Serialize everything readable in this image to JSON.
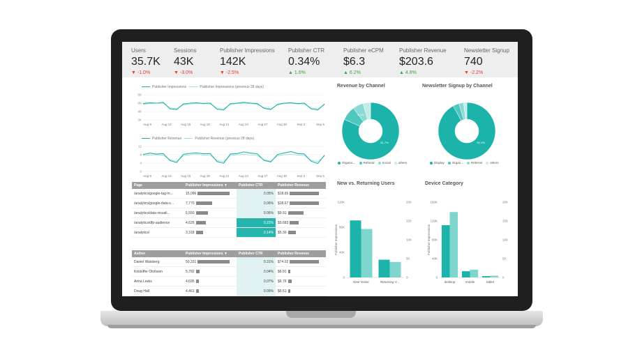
{
  "kpis": [
    {
      "label": "Users",
      "value": "35.7K",
      "change": "-1.0%",
      "dir": "down"
    },
    {
      "label": "Sessions",
      "value": "43K",
      "change": "-3.0%",
      "dir": "down"
    },
    {
      "label": "Publisher Impressions",
      "value": "142K",
      "change": "-2.5%",
      "dir": "down"
    },
    {
      "label": "Publisher CTR",
      "value": "0.34%",
      "change": "1.6%",
      "dir": "up"
    },
    {
      "label": "Publisher eCPM",
      "value": "$6.3",
      "change": "6.2%",
      "dir": "up"
    },
    {
      "label": "Publisher Revenue",
      "value": "$203.6",
      "change": "4.8%",
      "dir": "up"
    },
    {
      "label": "Newsletter Signup",
      "value": "740",
      "change": "-2.2%",
      "dir": "down"
    }
  ],
  "arrows": {
    "down": "▼",
    "up": "▲"
  },
  "impressions_chart": {
    "legend_current": "Publisher Impressions",
    "legend_previous": "Publisher Impressions (previous 28 days)",
    "y_ticks": [
      "8K",
      "6K",
      "4K",
      "2K"
    ],
    "x_ticks": [
      "Aug 9",
      "Aug 12",
      "Aug 15",
      "Aug 18",
      "Aug 21",
      "Aug 24",
      "Aug 27",
      "Aug 30",
      "Sep 2",
      "Sep 5"
    ],
    "current": [
      5.8,
      6.0,
      5.9,
      6.1,
      4.6,
      4.4,
      5.7,
      5.9,
      6.0,
      5.8,
      5.9,
      4.5,
      4.3,
      5.8,
      5.9,
      6.1,
      5.9,
      5.8,
      4.7,
      4.4,
      5.6,
      5.9,
      6.0,
      5.8,
      5.9,
      4.6,
      4.3,
      5.7
    ],
    "previous": [
      5.6,
      5.8,
      5.9,
      5.9,
      4.8,
      4.6,
      5.5,
      5.7,
      5.8,
      5.9,
      5.7,
      4.8,
      4.6,
      5.6,
      5.8,
      5.9,
      5.8,
      5.6,
      4.9,
      4.6,
      5.5,
      5.8,
      5.9,
      5.7,
      5.7,
      4.8,
      4.6,
      5.5
    ],
    "ylim": [
      2,
      8.5
    ]
  },
  "revenue_chart": {
    "legend_current": "Publisher Revenue",
    "legend_previous": "Publisher Revenue (previous 28 days)",
    "y_ticks": [
      "12",
      "8",
      "4",
      "0"
    ],
    "x_ticks": [
      "Aug 9",
      "Aug 12",
      "Aug 15",
      "Aug 18",
      "Aug 21",
      "Aug 24",
      "Aug 27",
      "Aug 30",
      "Sep 2",
      "Sep 5"
    ],
    "current": [
      8.5,
      9.2,
      8.8,
      9.0,
      5.5,
      4.5,
      8.6,
      9.1,
      9.3,
      8.9,
      9.0,
      5.0,
      4.2,
      8.8,
      9.0,
      9.8,
      9.2,
      8.9,
      5.6,
      4.8,
      8.5,
      9.3,
      10.0,
      9.0,
      8.8,
      5.2,
      4.0,
      8.2
    ],
    "previous": [
      7.9,
      8.3,
      8.4,
      8.2,
      5.9,
      5.1,
      7.9,
      8.4,
      8.5,
      8.3,
      8.1,
      5.6,
      5.0,
      8.0,
      8.4,
      8.6,
      8.3,
      8.1,
      5.8,
      5.2,
      7.8,
      8.4,
      8.6,
      8.2,
      8.0,
      5.6,
      5.0,
      7.7
    ],
    "ylim": [
      0,
      14
    ]
  },
  "page_table": {
    "headers": [
      "Page",
      "Publisher Impressions ▼",
      "Publisher CTR",
      "Publisher Revenue"
    ],
    "rows": [
      {
        "page": "/analytics/google-tag-m...",
        "impr": "15,096",
        "impr_frac": 1.0,
        "ctr": "0.05%",
        "ctr_hi": false,
        "rev": "$18.65",
        "rev_frac": 1.0
      },
      {
        "page": "/analytics/google-data-s...",
        "impr": "7,770",
        "impr_frac": 0.51,
        "ctr": "0.06%",
        "ctr_hi": false,
        "rev": "$18.67",
        "rev_frac": 1.0
      },
      {
        "page": "/analytics/data-visuali...",
        "impr": "5,550",
        "impr_frac": 0.37,
        "ctr": "0.06%",
        "ctr_hi": false,
        "rev": "$9.91",
        "rev_frac": 0.53
      },
      {
        "page": "/analytics/dfp-audience",
        "impr": "4,626",
        "impr_frac": 0.31,
        "ctr": "0.22%",
        "ctr_hi": true,
        "rev": "$5.683",
        "rev_frac": 0.3
      },
      {
        "page": "/analytics/",
        "impr": "3,318",
        "impr_frac": 0.22,
        "ctr": "0.14%",
        "ctr_hi": true,
        "rev": "$5.30",
        "rev_frac": 0.28
      }
    ]
  },
  "author_table": {
    "headers": [
      "Author",
      "Publisher Impressions ▼",
      "Publisher CTR",
      "Publisher Revenue"
    ],
    "rows": [
      {
        "page": "Daniel Waisberg",
        "impr": "50,331",
        "impr_frac": 1.0,
        "ctr": "0.31%",
        "ctr_hi": false,
        "rev": "$74.02",
        "rev_frac": 1.0
      },
      {
        "page": "Kristoffer Olofsson",
        "impr": "5,782",
        "impr_frac": 0.11,
        "ctr": "0.04%",
        "ctr_hi": false,
        "rev": "$6.91",
        "rev_frac": 0.09
      },
      {
        "page": "Anna Lewis",
        "impr": "4,695",
        "impr_frac": 0.09,
        "ctr": "0.07%",
        "ctr_hi": false,
        "rev": "$9.76",
        "rev_frac": 0.13
      },
      {
        "page": "Doug Hall",
        "impr": "4,461",
        "impr_frac": 0.09,
        "ctr": "0.09%",
        "ctr_hi": false,
        "rev": "$6.51",
        "rev_frac": 0.09
      }
    ]
  },
  "revenue_by_channel": {
    "title": "Revenue by Channel",
    "slices": [
      {
        "label": "Organic...",
        "value": 81.7,
        "color": "#1cb4aa"
      },
      {
        "label": "Referral",
        "value": 8.1,
        "color": "#4fc7bf"
      },
      {
        "label": "Social",
        "value": 6.0,
        "color": "#8ad9d3"
      },
      {
        "label": "others",
        "value": 4.2,
        "color": "#c2ece8"
      }
    ],
    "inner_label": "81.7%",
    "small_label": "8.1%"
  },
  "newsletter_by_channel": {
    "title": "Newsletter Signup by Channel",
    "slices": [
      {
        "label": "Display",
        "value": 92.1,
        "color": "#1cb4aa"
      },
      {
        "label": "Organ...",
        "value": 3.5,
        "color": "#4fc7bf"
      },
      {
        "label": "Referral",
        "value": 2.6,
        "color": "#8ad9d3"
      },
      {
        "label": "others",
        "value": 1.8,
        "color": "#c2ece8"
      }
    ],
    "inner_label": "92.1%"
  },
  "new_vs_returning": {
    "title": "New vs. Returning Users",
    "ylabel": "Publisher Impressions",
    "y_ticks_left": [
      "120K",
      "80K",
      "40K",
      "0"
    ],
    "y_ticks_right": [
      "200",
      "150",
      "100",
      "50",
      "0"
    ],
    "categories": [
      "New Visitor",
      "Returning V..."
    ],
    "series": [
      {
        "name": "Publisher Impressions",
        "values": [
          106000,
          33000
        ],
        "color": "#1cb4aa"
      },
      {
        "name": "Publisher Revenue",
        "values": [
          150,
          48
        ],
        "color": "#7fd6cf"
      }
    ],
    "ylim_left": [
      0,
      140000
    ],
    "ylim_right": [
      0,
      233
    ]
  },
  "device_category": {
    "title": "Device Category",
    "ylabel": "Publisher Impressions",
    "y_ticks_left": [
      "160K",
      "120K",
      "80K",
      "40K",
      "0"
    ],
    "y_ticks_right": [
      "200",
      "150",
      "100",
      "50",
      "0"
    ],
    "categories": [
      "desktop",
      "mobile",
      "tablet"
    ],
    "series": [
      {
        "name": "Publisher Impressions",
        "values": [
          118000,
          14000,
          3000
        ],
        "color": "#1cb4aa"
      },
      {
        "name": "Publisher Revenue",
        "values": [
          185,
          22,
          5
        ],
        "color": "#7fd6cf"
      }
    ],
    "ylim_left": [
      0,
      170000
    ],
    "ylim_right": [
      0,
      213
    ]
  },
  "colors": {
    "accent": "#1cb4aa",
    "accent_light": "#7fd6cf",
    "header_gray": "#9e9e9e"
  }
}
